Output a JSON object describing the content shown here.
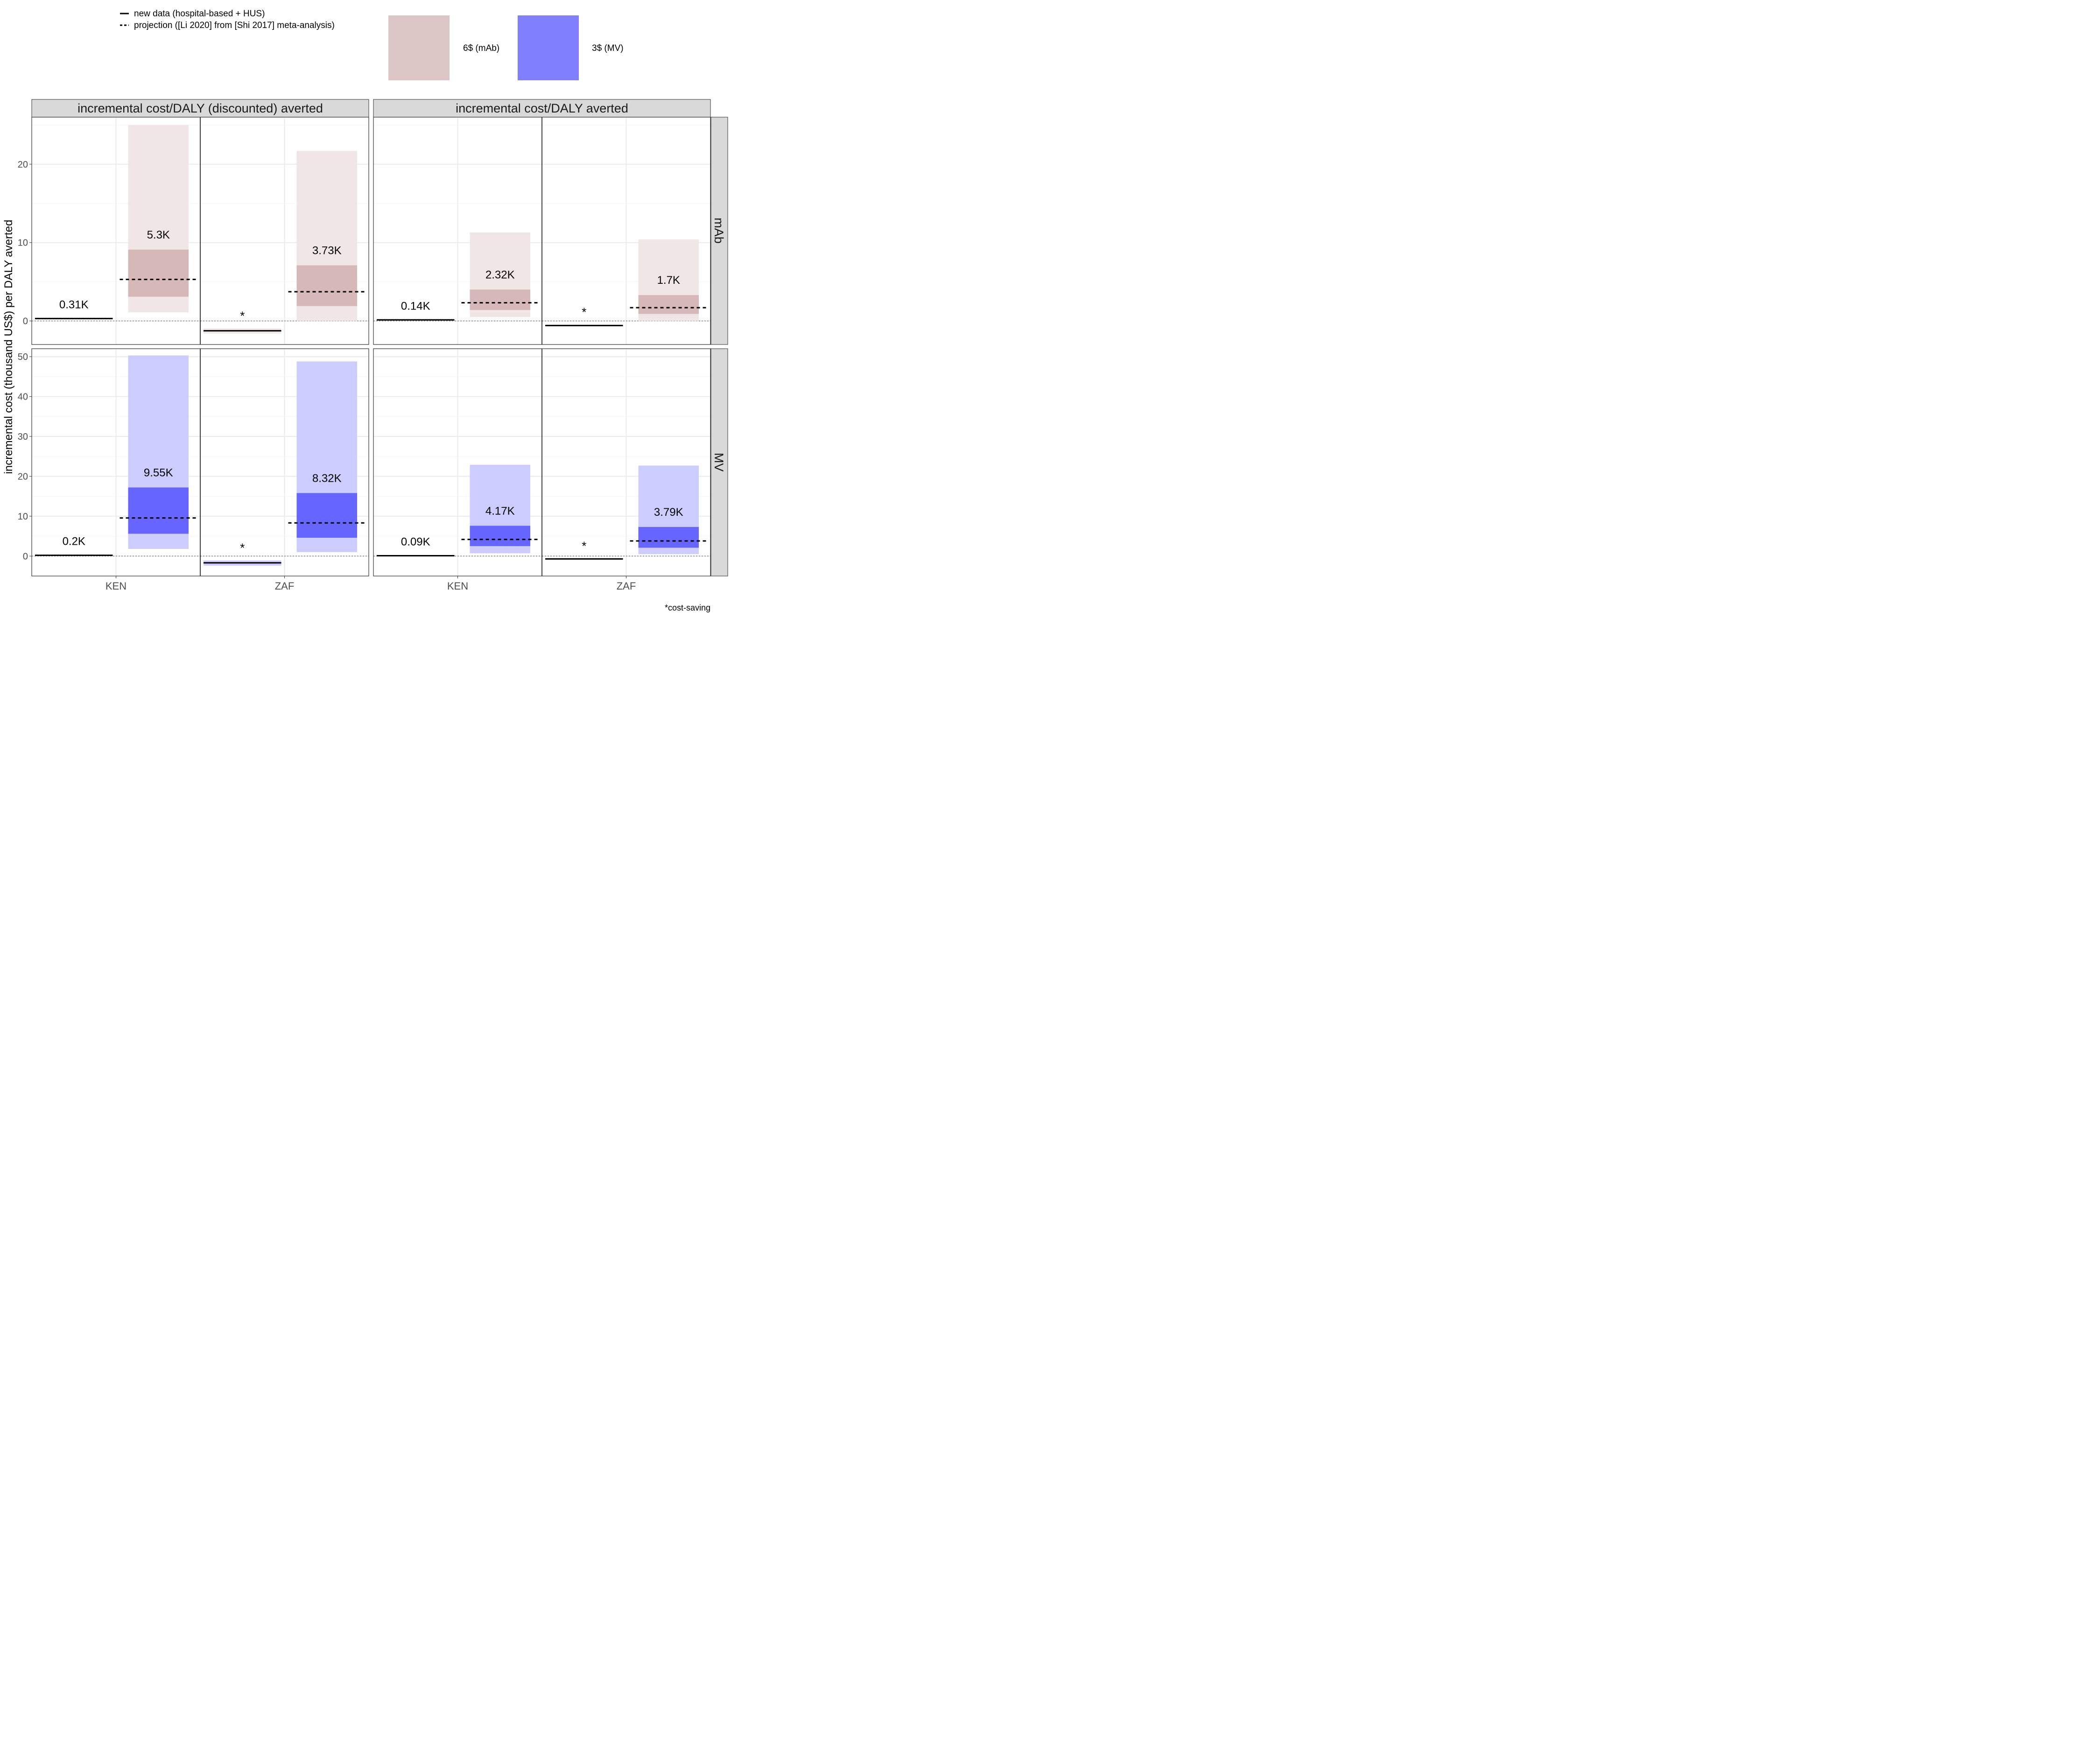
{
  "legend": {
    "line_items": [
      {
        "label": "new data (hospital-based + HUS)",
        "style": "solid"
      },
      {
        "label": "projection ([Li 2020] from [Shi 2017] meta-analysis)",
        "style": "dashed"
      }
    ],
    "fill_items": [
      {
        "label": "6$ (mAb)",
        "color": "#dcc5c5"
      },
      {
        "label": "3$ (MV)",
        "color": "#8080ff"
      }
    ]
  },
  "y_axis_label": "incremental cost (thousand US$) per DALY averted",
  "footnote": "*cost-saving",
  "colors": {
    "mAb": {
      "outer": "#f0e6e5",
      "inner": "#d6b8b8",
      "line": "#6b5454"
    },
    "MV": {
      "outer": "#ccccff",
      "inner": "#6666ff",
      "line": "#2222aa"
    },
    "strip_bg": "#d9d9d9",
    "grid": "#ebebeb"
  },
  "chart_data": {
    "type": "bar",
    "columns": [
      "incremental cost/DALY (discounted) averted",
      "incremental cost/DALY averted"
    ],
    "rows": [
      "mAb",
      "MV"
    ],
    "countries": [
      "KEN",
      "ZAF"
    ],
    "row_axes": {
      "mAb": {
        "ylim": [
          -3,
          26
        ],
        "ticks": [
          0,
          10,
          20
        ]
      },
      "MV": {
        "ylim": [
          -5,
          52
        ],
        "ticks": [
          0,
          10,
          20,
          30,
          40,
          50
        ]
      }
    },
    "panels": [
      {
        "column": 0,
        "row": "mAb",
        "groups": [
          {
            "country": "KEN",
            "new": {
              "value": 0.31,
              "lo": 0.28,
              "hi": 0.34,
              "label": "0.31K",
              "cost_saving": false
            },
            "proj": {
              "value": 5.3,
              "outer": [
                1.1,
                25.0
              ],
              "inner": [
                3.1,
                9.1
              ],
              "label": "5.3K"
            }
          },
          {
            "country": "ZAF",
            "new": {
              "value": -1.25,
              "lo": -1.6,
              "hi": -0.95,
              "label": "*",
              "cost_saving": true
            },
            "proj": {
              "value": 3.73,
              "outer": [
                0.0,
                21.7
              ],
              "inner": [
                1.9,
                7.1
              ],
              "label": "3.73K"
            }
          }
        ]
      },
      {
        "column": 1,
        "row": "mAb",
        "groups": [
          {
            "country": "KEN",
            "new": {
              "value": 0.14,
              "lo": 0.12,
              "hi": 0.16,
              "label": "0.14K",
              "cost_saving": false
            },
            "proj": {
              "value": 2.32,
              "outer": [
                0.5,
                11.3
              ],
              "inner": [
                1.4,
                4.0
              ],
              "label": "2.32K"
            }
          },
          {
            "country": "ZAF",
            "new": {
              "value": -0.58,
              "lo": -0.68,
              "hi": -0.48,
              "label": "*",
              "cost_saving": true
            },
            "proj": {
              "value": 1.7,
              "outer": [
                0.0,
                10.4
              ],
              "inner": [
                0.9,
                3.3
              ],
              "label": "1.7K"
            }
          }
        ]
      },
      {
        "column": 0,
        "row": "MV",
        "groups": [
          {
            "country": "KEN",
            "new": {
              "value": 0.2,
              "lo": 0.15,
              "hi": 0.25,
              "label": "0.2K",
              "cost_saving": false
            },
            "proj": {
              "value": 9.55,
              "outer": [
                1.8,
                50.3
              ],
              "inner": [
                5.6,
                17.2
              ],
              "label": "9.55K"
            }
          },
          {
            "country": "ZAF",
            "new": {
              "value": -1.7,
              "lo": -2.4,
              "hi": -1.1,
              "label": "*",
              "cost_saving": true
            },
            "proj": {
              "value": 8.32,
              "outer": [
                1.0,
                48.8
              ],
              "inner": [
                4.6,
                15.8
              ],
              "label": "8.32K"
            }
          }
        ]
      },
      {
        "column": 1,
        "row": "MV",
        "groups": [
          {
            "country": "KEN",
            "new": {
              "value": 0.09,
              "lo": 0.06,
              "hi": 0.12,
              "label": "0.09K",
              "cost_saving": false
            },
            "proj": {
              "value": 4.17,
              "outer": [
                0.7,
                22.9
              ],
              "inner": [
                2.5,
                7.6
              ],
              "label": "4.17K"
            }
          },
          {
            "country": "ZAF",
            "new": {
              "value": -0.72,
              "lo": -0.85,
              "hi": -0.6,
              "label": "*",
              "cost_saving": true
            },
            "proj": {
              "value": 3.79,
              "outer": [
                0.5,
                22.7
              ],
              "inner": [
                2.1,
                7.3
              ],
              "label": "3.79K"
            }
          }
        ]
      }
    ]
  }
}
